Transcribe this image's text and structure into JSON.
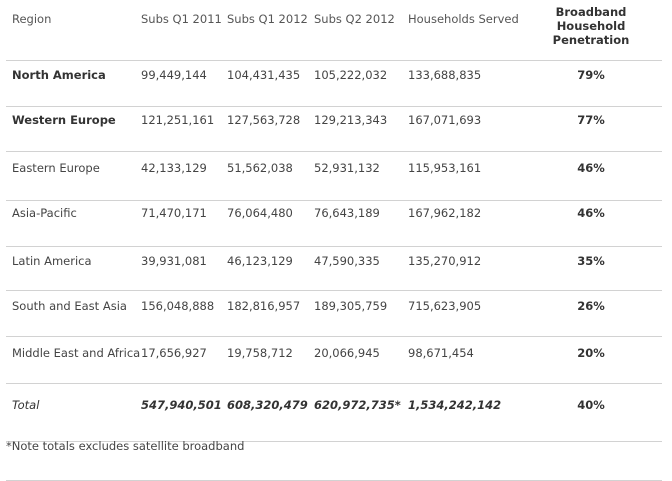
{
  "headers": [
    "Region",
    "Subs Q1 2011",
    "Subs Q1 2012",
    "Subs Q2 2012",
    "Households Served",
    "Broadband Household Penetration"
  ],
  "rows": [
    {
      "region": "North America",
      "q1_2011": "99,449,144",
      "q1_2012": "104,431,435",
      "q2_2012": "105,222,032",
      "households": "133,688,835",
      "penetration": "79%"
    },
    {
      "region": "Western Europe",
      "q1_2011": "121,251,161",
      "q1_2012": "127,563,728",
      "q2_2012": "129,213,343",
      "households": "167,071,693",
      "penetration": "77%"
    },
    {
      "region": "Eastern Europe",
      "q1_2011": "42,133,129",
      "q1_2012": "51,562,038",
      "q2_2012": "52,931,132",
      "households": "115,953,161",
      "penetration": "46%"
    },
    {
      "region": "Asia-Pacific",
      "q1_2011": "71,470,171",
      "q1_2012": "76,064,480",
      "q2_2012": "76,643,189",
      "households": "167,962,182",
      "penetration": "46%"
    },
    {
      "region": "Latin America",
      "q1_2011": "39,931,081",
      "q1_2012": "46,123,129",
      "q2_2012": "47,590,335",
      "households": "135,270,912",
      "penetration": "35%"
    },
    {
      "region": "South and East Asia",
      "q1_2011": "156,048,888",
      "q1_2012": "182,816,957",
      "q2_2012": "189,305,759",
      "households": "715,623,905",
      "penetration": "26%"
    },
    {
      "region": "Middle East and Africa",
      "q1_2011": "17,656,927",
      "q1_2012": "19,758,712",
      "q2_2012": "20,066,945",
      "households": "98,671,454",
      "penetration": "20%"
    }
  ],
  "total": {
    "label": "Total",
    "q1_2011": "547,940,501",
    "q1_2012": "608,320,479",
    "q2_2012": "620,972,735*",
    "households": "1,534,242,142",
    "penetration": "40%"
  },
  "note": "*Note totals excludes satellite broadband"
}
